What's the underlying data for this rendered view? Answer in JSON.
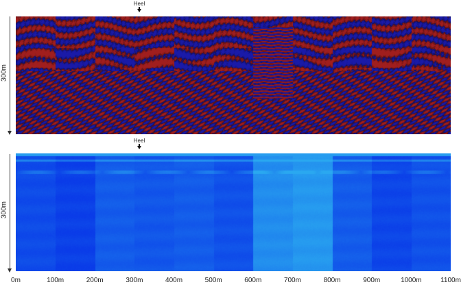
{
  "panels": [
    {
      "name": "waveform-panel",
      "marker_label": "Heel",
      "depth_label": "300m",
      "palette": [
        "#1a1aa8",
        "#a01e1e"
      ]
    },
    {
      "name": "energy-panel",
      "marker_label": "Heel",
      "depth_label": "300m",
      "palette": [
        "#0a3be8",
        "#2aa8f0"
      ]
    }
  ],
  "x_axis": {
    "ticks": [
      "0m",
      "100m",
      "200m",
      "300m",
      "400m",
      "500m",
      "600m",
      "700m",
      "800m",
      "900m",
      "1000m",
      "1100m"
    ],
    "range": [
      0,
      1100
    ],
    "marker_position": 310
  }
}
